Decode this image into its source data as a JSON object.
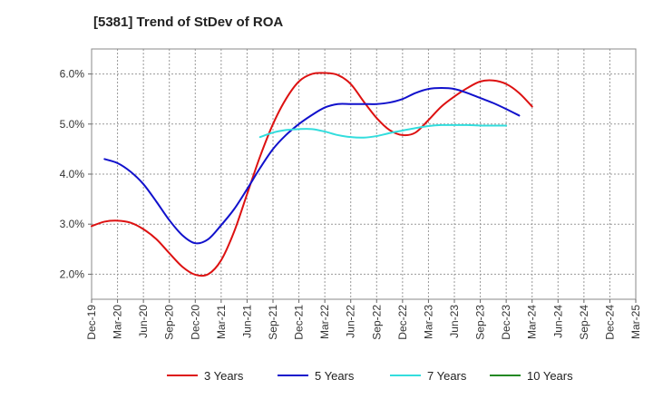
{
  "chart_data": {
    "type": "line",
    "title": "[5381]  Trend of StDev of ROA",
    "xlabel": "",
    "ylabel": "",
    "x_ticks": [
      "Dec-19",
      "Mar-20",
      "Jun-20",
      "Sep-20",
      "Dec-20",
      "Mar-21",
      "Jun-21",
      "Sep-21",
      "Dec-21",
      "Mar-22",
      "Jun-22",
      "Sep-22",
      "Dec-22",
      "Mar-23",
      "Jun-23",
      "Sep-23",
      "Dec-23",
      "Mar-24",
      "Jun-24",
      "Sep-24",
      "Dec-24",
      "Mar-25"
    ],
    "ylim": [
      1.5,
      6.5
    ],
    "y_ticks": [
      2.0,
      3.0,
      4.0,
      5.0,
      6.0
    ],
    "y_tick_labels": [
      "2.0%",
      "3.0%",
      "4.0%",
      "5.0%",
      "6.0%"
    ],
    "grid": true,
    "legend_position": "bottom",
    "series": [
      {
        "name": "3 Years",
        "color": "#dd1111",
        "values": [
          2.96,
          3.05,
          3.07,
          3.03,
          2.9,
          2.7,
          2.42,
          2.15,
          1.99,
          2.0,
          2.28,
          2.85,
          3.6,
          4.35,
          5.0,
          5.5,
          5.85,
          6.0,
          6.02,
          5.98,
          5.8,
          5.45,
          5.12,
          4.88,
          4.78,
          4.83,
          5.08,
          5.35,
          5.55,
          5.72,
          5.85,
          5.87,
          5.8,
          5.62,
          5.35
        ]
      },
      {
        "name": "5 Years",
        "color": "#1111cc",
        "values": [
          null,
          4.3,
          4.22,
          4.05,
          3.8,
          3.45,
          3.08,
          2.78,
          2.62,
          2.7,
          2.98,
          3.3,
          3.7,
          4.12,
          4.5,
          4.78,
          5.0,
          5.18,
          5.33,
          5.4,
          5.4,
          5.4,
          5.4,
          5.43,
          5.5,
          5.62,
          5.7,
          5.72,
          5.7,
          5.62,
          5.52,
          5.42,
          5.3,
          5.17
        ]
      },
      {
        "name": "7 Years",
        "color": "#33dddd",
        "values": [
          null,
          null,
          null,
          null,
          null,
          null,
          null,
          null,
          null,
          null,
          null,
          null,
          null,
          4.74,
          4.83,
          4.88,
          4.9,
          4.9,
          4.85,
          4.78,
          4.74,
          4.73,
          4.76,
          4.82,
          4.87,
          4.92,
          4.96,
          4.98,
          4.98,
          4.98,
          4.97,
          4.97,
          4.97
        ]
      },
      {
        "name": "10 Years",
        "color": "#228822",
        "values": []
      }
    ]
  }
}
